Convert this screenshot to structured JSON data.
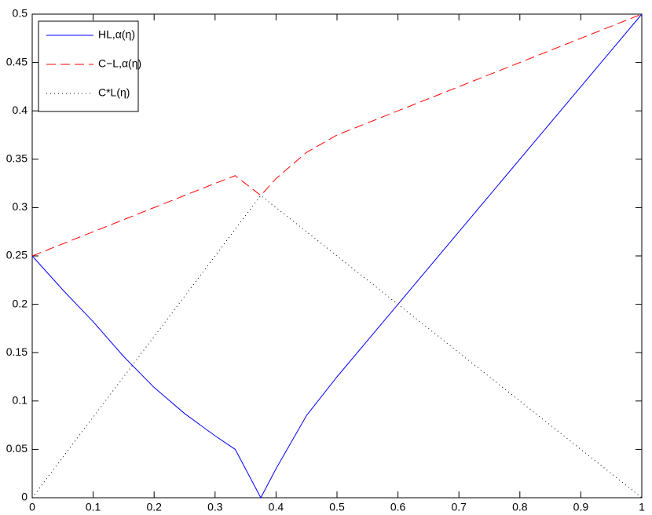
{
  "chart_data": {
    "type": "line",
    "x": [
      0,
      0.05,
      0.1,
      0.15,
      0.2,
      0.25,
      0.3,
      0.333,
      0.375,
      0.4,
      0.45,
      0.5,
      1
    ],
    "series": [
      {
        "name": "HL,α(η)",
        "color": "#0000ff",
        "style": "solid",
        "values": [
          0.25,
          0.215,
          0.182,
          0.146,
          0.114,
          0.087,
          0.064,
          0.05,
          0,
          0.03,
          0.085,
          0.125,
          0.5
        ]
      },
      {
        "name": "C−L,α(η)",
        "color": "#ff0000",
        "style": "dashed",
        "values": [
          0.25,
          0.2625,
          0.275,
          0.2875,
          0.3,
          0.3125,
          0.325,
          0.333,
          0.3125,
          0.33,
          0.357,
          0.375,
          0.5
        ]
      },
      {
        "name": "C*L(η)",
        "color": "#000000",
        "style": "dotted",
        "values": [
          0,
          0.0417,
          0.0833,
          0.125,
          0.1667,
          0.2083,
          0.25,
          0.2775,
          0.3125,
          0.3,
          0.275,
          0.25,
          0
        ]
      }
    ],
    "xlim": [
      0,
      1
    ],
    "xticks": [
      0,
      0.1,
      0.2,
      0.3,
      0.4,
      0.5,
      0.6,
      0.7,
      0.8,
      0.9,
      1
    ],
    "ylim": [
      0,
      0.5
    ],
    "yticks": [
      0,
      0.05,
      0.1,
      0.15,
      0.2,
      0.25,
      0.3,
      0.35,
      0.4,
      0.45,
      0.5
    ],
    "legend": "upper-left"
  }
}
